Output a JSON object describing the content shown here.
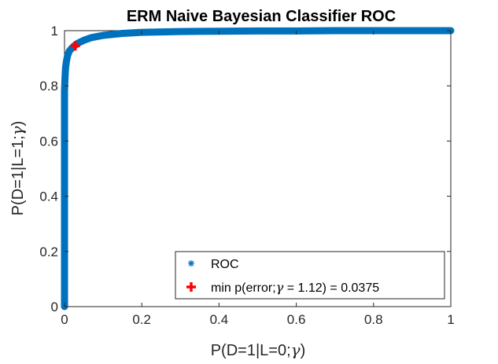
{
  "chart_data": {
    "type": "scatter",
    "title": "ERM Naive Bayesian Classifier ROC",
    "xlabel_parts": [
      "P(D=1|L=0;",
      "γ",
      ")"
    ],
    "ylabel_parts": [
      "P(D=1|L=1;",
      "γ",
      ")"
    ],
    "xlim": [
      0,
      1
    ],
    "ylim": [
      0,
      1
    ],
    "xticks": [
      "0",
      "0.2",
      "0.4",
      "0.6",
      "0.8",
      "1"
    ],
    "yticks": [
      "0",
      "0.2",
      "0.4",
      "0.6",
      "0.8",
      "1"
    ],
    "grid": false,
    "legend_position": "bottom-right",
    "series": [
      {
        "name": "ROC",
        "marker": "asterisk",
        "color": "#0072BD",
        "x": [
          0,
          0,
          0,
          0,
          0,
          0,
          0,
          0,
          0,
          0.001,
          0.002,
          0.003,
          0.005,
          0.008,
          0.012,
          0.018,
          0.025,
          0.035,
          0.05,
          0.07,
          0.1,
          0.15,
          0.2,
          0.3,
          0.4,
          0.5,
          0.6,
          0.7,
          0.8,
          0.9,
          1.0
        ],
        "y": [
          0,
          0.1,
          0.2,
          0.3,
          0.4,
          0.5,
          0.6,
          0.7,
          0.78,
          0.82,
          0.85,
          0.87,
          0.89,
          0.91,
          0.925,
          0.935,
          0.945,
          0.955,
          0.965,
          0.975,
          0.983,
          0.99,
          0.994,
          0.997,
          0.998,
          0.999,
          0.999,
          1.0,
          1.0,
          1.0,
          1.0
        ]
      },
      {
        "name_parts": [
          "min p(error;",
          "γ",
          " = 1.12) = 0.0375"
        ],
        "marker": "plus",
        "color": "#FF0000",
        "x": [
          0.028
        ],
        "y": [
          0.945
        ]
      }
    ]
  }
}
